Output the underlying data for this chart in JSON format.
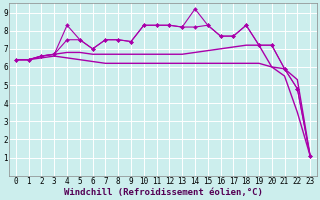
{
  "background_color": "#cceeed",
  "grid_color": "#ffffff",
  "line_color": "#aa00aa",
  "xlabel": "Windchill (Refroidissement éolien,°C)",
  "xlabel_fontsize": 6.5,
  "tick_fontsize": 5.5,
  "xlim": [
    -0.5,
    23.5
  ],
  "ylim": [
    0,
    9.5
  ],
  "yticks": [
    1,
    2,
    3,
    4,
    5,
    6,
    7,
    8,
    9
  ],
  "xticks": [
    0,
    1,
    2,
    3,
    4,
    5,
    6,
    7,
    8,
    9,
    10,
    11,
    12,
    13,
    14,
    15,
    16,
    17,
    18,
    19,
    20,
    21,
    22,
    23
  ],
  "series": [
    {
      "x": [
        0,
        1,
        2,
        3,
        4,
        5,
        6,
        7,
        8,
        9,
        10,
        11,
        12,
        13,
        14,
        15,
        16,
        17,
        18,
        19,
        20,
        21,
        22,
        23
      ],
      "y": [
        6.4,
        6.4,
        6.6,
        6.7,
        8.3,
        7.5,
        7.0,
        7.5,
        7.5,
        7.4,
        8.3,
        8.3,
        8.3,
        8.2,
        9.2,
        8.3,
        7.7,
        7.7,
        8.3,
        7.2,
        7.2,
        5.9,
        4.8,
        1.1
      ],
      "marker": "D",
      "markersize": 2.0,
      "linewidth": 0.8,
      "has_marker": true
    },
    {
      "x": [
        0,
        1,
        2,
        3,
        4,
        5,
        6,
        7,
        8,
        9,
        10,
        11,
        12,
        13,
        14,
        15,
        16,
        17,
        18,
        19,
        20,
        21,
        22,
        23
      ],
      "y": [
        6.4,
        6.4,
        6.6,
        6.7,
        7.5,
        7.5,
        7.0,
        7.5,
        7.5,
        7.4,
        8.3,
        8.3,
        8.3,
        8.2,
        8.2,
        8.3,
        7.7,
        7.7,
        8.3,
        7.2,
        7.2,
        5.9,
        4.8,
        1.1
      ],
      "marker": "D",
      "markersize": 2.0,
      "linewidth": 0.8,
      "has_marker": true
    },
    {
      "x": [
        0,
        1,
        2,
        3,
        4,
        5,
        6,
        7,
        8,
        9,
        10,
        11,
        12,
        13,
        14,
        15,
        16,
        17,
        18,
        19,
        20,
        21,
        22,
        23
      ],
      "y": [
        6.4,
        6.4,
        6.6,
        6.7,
        6.8,
        6.8,
        6.7,
        6.7,
        6.7,
        6.7,
        6.7,
        6.7,
        6.7,
        6.7,
        6.8,
        6.9,
        7.0,
        7.1,
        7.2,
        7.2,
        6.0,
        5.9,
        5.3,
        1.1
      ],
      "marker": null,
      "markersize": 0,
      "linewidth": 1.0,
      "has_marker": false
    },
    {
      "x": [
        0,
        1,
        2,
        3,
        4,
        5,
        6,
        7,
        8,
        9,
        10,
        11,
        12,
        13,
        14,
        15,
        16,
        17,
        18,
        19,
        20,
        21,
        22,
        23
      ],
      "y": [
        6.4,
        6.4,
        6.5,
        6.6,
        6.5,
        6.4,
        6.3,
        6.2,
        6.2,
        6.2,
        6.2,
        6.2,
        6.2,
        6.2,
        6.2,
        6.2,
        6.2,
        6.2,
        6.2,
        6.2,
        6.0,
        5.5,
        3.5,
        1.1
      ],
      "marker": null,
      "markersize": 0,
      "linewidth": 1.0,
      "has_marker": false
    }
  ]
}
